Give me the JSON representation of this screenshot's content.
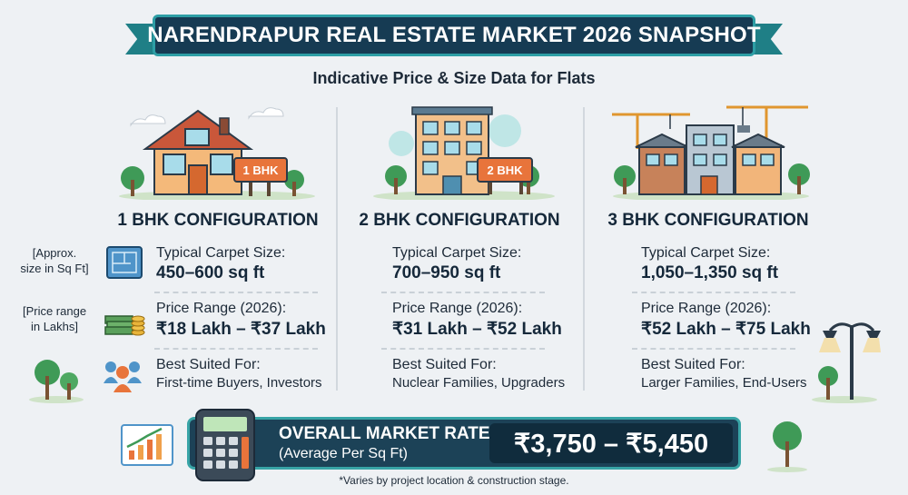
{
  "header": {
    "title": "NARENDRAPUR REAL ESTATE MARKET 2026 SNAPSHOT",
    "subtitle": "Indicative Price & Size Data for Flats"
  },
  "legend": {
    "size_note": "[Approx. size in Sq Ft]",
    "size_note_line1": "[Approx.",
    "size_note_line2": "size in Sq Ft]",
    "price_note": "[Price range in Lakhs]",
    "price_note_line1": "[Price range",
    "price_note_line2": "in Lakhs]"
  },
  "columns": [
    {
      "sign": "1 BHK",
      "heading": "1 BHK CONFIGURATION",
      "size_label": "Typical Carpet Size:",
      "size_value": "450–600 sq ft",
      "price_label": "Price Range (2026):",
      "price_value": "₹18 Lakh – ₹37 Lakh",
      "suited_label": "Best Suited For:",
      "suited_value": "First-time Buyers, Investors"
    },
    {
      "sign": "2 BHK",
      "heading": "2 BHK CONFIGURATION",
      "size_label": "Typical Carpet Size:",
      "size_value": "700–950 sq ft",
      "price_label": "Price Range (2026):",
      "price_value": "₹31 Lakh – ₹52 Lakh",
      "suited_label": "Best Suited For:",
      "suited_value": "Nuclear Families, Upgraders"
    },
    {
      "heading": "3 BHK CONFIGURATION",
      "size_label": "Typical Carpet Size:",
      "size_value": "1,050–1,350 sq ft",
      "price_label": "Price Range (2026):",
      "price_value": "₹52 Lakh – ₹75 Lakh",
      "suited_label": "Best Suited For:",
      "suited_value": "Larger Families, End-Users"
    }
  ],
  "market": {
    "label": "OVERALL MARKET RATE",
    "sub": "(Average Per Sq Ft)",
    "value": "₹3,750 – ₹5,450"
  },
  "footnote": "*Varies by project location & construction stage.",
  "colors": {
    "navy": "#163b53",
    "teal": "#2d9ea5",
    "orange": "#e8743b",
    "background": "#eef1f4"
  },
  "icons": [
    "house-icon",
    "apartment-icon",
    "construction-icon",
    "blueprint-icon",
    "money-stack-icon",
    "people-icon",
    "calculator-icon",
    "growth-chart-icon",
    "street-lamp-icon",
    "tree-icon"
  ]
}
